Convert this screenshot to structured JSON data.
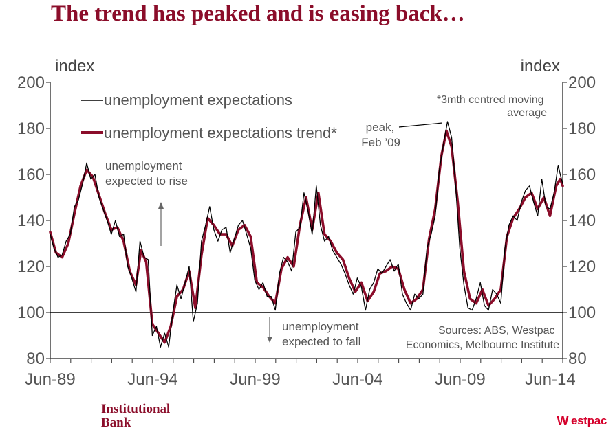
{
  "page": {
    "title": "The trend has peaked and is easing back…",
    "brand_left": [
      "Institutional",
      "Bank"
    ],
    "brand_right": "estpac",
    "brand_right_logo": "W",
    "colors": {
      "title": "#8b0d2a",
      "trend": "#8b0d2a",
      "raw": "#000000",
      "westpac_red": "#d5002b"
    }
  },
  "chart_data": {
    "type": "line",
    "left_axis_label": "index",
    "right_axis_label": "index",
    "ylim": [
      80,
      200
    ],
    "yticks": [
      "80",
      "100",
      "120",
      "140",
      "160",
      "180",
      "200"
    ],
    "xlim": [
      1989.42,
      2014.42
    ],
    "xtick_labels": [
      "Jun-89",
      "Jun-94",
      "Jun-99",
      "Jun-04",
      "Jun-09",
      "Jun-14"
    ],
    "xtick_values": [
      1989.42,
      1994.42,
      1999.42,
      2004.42,
      2009.42,
      2014.42
    ],
    "reference_line": 100,
    "legend": [
      "unemployment expectations",
      "unemployment expectations trend*"
    ],
    "note": [
      "*3mth centred moving",
      "average"
    ],
    "annotations": {
      "peak": [
        "peak,",
        "Feb ’09"
      ],
      "rise": [
        "unemployment",
        "expected to rise"
      ],
      "fall": [
        "unemployment",
        "expected to fall"
      ],
      "sources": [
        "Sources: ABS, Westpac",
        "Economics, Melbourne Institute"
      ]
    },
    "series": [
      {
        "name": "unemployment expectations trend*",
        "points": [
          [
            1989.42,
            135
          ],
          [
            1989.7,
            126
          ],
          [
            1990.0,
            124
          ],
          [
            1990.3,
            130
          ],
          [
            1990.6,
            143
          ],
          [
            1990.9,
            155
          ],
          [
            1991.2,
            162
          ],
          [
            1991.5,
            159
          ],
          [
            1991.8,
            151
          ],
          [
            1992.1,
            143
          ],
          [
            1992.4,
            136
          ],
          [
            1992.7,
            137
          ],
          [
            1993.0,
            131
          ],
          [
            1993.3,
            118
          ],
          [
            1993.6,
            112
          ],
          [
            1993.85,
            127
          ],
          [
            1994.1,
            122
          ],
          [
            1994.4,
            95
          ],
          [
            1994.7,
            91
          ],
          [
            1995.0,
            87
          ],
          [
            1995.3,
            94
          ],
          [
            1995.6,
            107
          ],
          [
            1995.9,
            110
          ],
          [
            1996.2,
            118
          ],
          [
            1996.5,
            102
          ],
          [
            1996.8,
            125
          ],
          [
            1997.1,
            141
          ],
          [
            1997.4,
            138
          ],
          [
            1997.7,
            134
          ],
          [
            1998.0,
            134
          ],
          [
            1998.3,
            129
          ],
          [
            1998.6,
            136
          ],
          [
            1998.9,
            138
          ],
          [
            1999.2,
            133
          ],
          [
            1999.5,
            113
          ],
          [
            1999.8,
            111
          ],
          [
            2000.1,
            107
          ],
          [
            2000.4,
            104
          ],
          [
            2000.7,
            119
          ],
          [
            2001.0,
            124
          ],
          [
            2001.3,
            120
          ],
          [
            2001.6,
            138
          ],
          [
            2001.9,
            150
          ],
          [
            2002.2,
            136
          ],
          [
            2002.5,
            152
          ],
          [
            2002.8,
            134
          ],
          [
            2003.1,
            131
          ],
          [
            2003.4,
            126
          ],
          [
            2003.7,
            123
          ],
          [
            2004.0,
            115
          ],
          [
            2004.3,
            109
          ],
          [
            2004.6,
            113
          ],
          [
            2004.9,
            105
          ],
          [
            2005.2,
            109
          ],
          [
            2005.5,
            117
          ],
          [
            2005.8,
            118
          ],
          [
            2006.1,
            120
          ],
          [
            2006.4,
            119
          ],
          [
            2006.7,
            110
          ],
          [
            2007.0,
            104
          ],
          [
            2007.3,
            106
          ],
          [
            2007.6,
            110
          ],
          [
            2007.9,
            132
          ],
          [
            2008.2,
            145
          ],
          [
            2008.5,
            168
          ],
          [
            2008.75,
            179
          ],
          [
            2009.0,
            172
          ],
          [
            2009.3,
            148
          ],
          [
            2009.6,
            118
          ],
          [
            2009.9,
            106
          ],
          [
            2010.2,
            104
          ],
          [
            2010.5,
            110
          ],
          [
            2010.8,
            103
          ],
          [
            2011.1,
            106
          ],
          [
            2011.4,
            110
          ],
          [
            2011.7,
            133
          ],
          [
            2012.0,
            141
          ],
          [
            2012.3,
            145
          ],
          [
            2012.6,
            150
          ],
          [
            2012.9,
            152
          ],
          [
            2013.2,
            145
          ],
          [
            2013.5,
            150
          ],
          [
            2013.8,
            142
          ],
          [
            2014.1,
            155
          ],
          [
            2014.3,
            158
          ],
          [
            2014.42,
            155
          ]
        ]
      },
      {
        "name": "unemployment expectations",
        "points": [
          [
            1989.42,
            134
          ],
          [
            1989.6,
            128
          ],
          [
            1989.8,
            124
          ],
          [
            1990.0,
            125
          ],
          [
            1990.2,
            131
          ],
          [
            1990.4,
            134
          ],
          [
            1990.6,
            146
          ],
          [
            1990.8,
            149
          ],
          [
            1991.0,
            156
          ],
          [
            1991.2,
            165
          ],
          [
            1991.4,
            158
          ],
          [
            1991.6,
            160
          ],
          [
            1991.8,
            150
          ],
          [
            1992.0,
            145
          ],
          [
            1992.2,
            140
          ],
          [
            1992.4,
            134
          ],
          [
            1992.6,
            140
          ],
          [
            1992.8,
            133
          ],
          [
            1993.0,
            134
          ],
          [
            1993.2,
            120
          ],
          [
            1993.4,
            115
          ],
          [
            1993.6,
            109
          ],
          [
            1993.8,
            131
          ],
          [
            1994.0,
            124
          ],
          [
            1994.2,
            123
          ],
          [
            1994.4,
            90
          ],
          [
            1994.6,
            94
          ],
          [
            1994.8,
            85
          ],
          [
            1995.0,
            91
          ],
          [
            1995.2,
            85
          ],
          [
            1995.4,
            100
          ],
          [
            1995.6,
            112
          ],
          [
            1995.8,
            106
          ],
          [
            1996.0,
            113
          ],
          [
            1996.2,
            120
          ],
          [
            1996.4,
            96
          ],
          [
            1996.6,
            104
          ],
          [
            1996.8,
            131
          ],
          [
            1997.0,
            138
          ],
          [
            1997.2,
            146
          ],
          [
            1997.4,
            136
          ],
          [
            1997.6,
            131
          ],
          [
            1997.8,
            136
          ],
          [
            1998.0,
            137
          ],
          [
            1998.2,
            126
          ],
          [
            1998.4,
            132
          ],
          [
            1998.6,
            138
          ],
          [
            1998.8,
            140
          ],
          [
            1999.0,
            134
          ],
          [
            1999.2,
            128
          ],
          [
            1999.4,
            114
          ],
          [
            1999.6,
            110
          ],
          [
            1999.8,
            113
          ],
          [
            2000.0,
            107
          ],
          [
            2000.2,
            107
          ],
          [
            2000.4,
            101
          ],
          [
            2000.6,
            117
          ],
          [
            2000.8,
            124
          ],
          [
            2001.0,
            122
          ],
          [
            2001.2,
            118
          ],
          [
            2001.4,
            135
          ],
          [
            2001.6,
            137
          ],
          [
            2001.8,
            152
          ],
          [
            2002.0,
            144
          ],
          [
            2002.2,
            134
          ],
          [
            2002.4,
            155
          ],
          [
            2002.6,
            138
          ],
          [
            2002.8,
            131
          ],
          [
            2003.0,
            133
          ],
          [
            2003.2,
            127
          ],
          [
            2003.4,
            124
          ],
          [
            2003.6,
            121
          ],
          [
            2003.8,
            117
          ],
          [
            2004.0,
            112
          ],
          [
            2004.2,
            108
          ],
          [
            2004.4,
            115
          ],
          [
            2004.6,
            111
          ],
          [
            2004.8,
            101
          ],
          [
            2005.0,
            110
          ],
          [
            2005.2,
            113
          ],
          [
            2005.4,
            119
          ],
          [
            2005.6,
            117
          ],
          [
            2005.8,
            120
          ],
          [
            2006.0,
            123
          ],
          [
            2006.2,
            118
          ],
          [
            2006.4,
            121
          ],
          [
            2006.6,
            108
          ],
          [
            2006.8,
            104
          ],
          [
            2007.0,
            101
          ],
          [
            2007.2,
            108
          ],
          [
            2007.4,
            106
          ],
          [
            2007.6,
            108
          ],
          [
            2007.8,
            128
          ],
          [
            2008.0,
            134
          ],
          [
            2008.2,
            142
          ],
          [
            2008.4,
            162
          ],
          [
            2008.6,
            173
          ],
          [
            2008.8,
            183
          ],
          [
            2009.0,
            176
          ],
          [
            2009.2,
            155
          ],
          [
            2009.4,
            128
          ],
          [
            2009.6,
            112
          ],
          [
            2009.8,
            102
          ],
          [
            2010.0,
            101
          ],
          [
            2010.2,
            106
          ],
          [
            2010.4,
            113
          ],
          [
            2010.6,
            103
          ],
          [
            2010.8,
            101
          ],
          [
            2011.0,
            110
          ],
          [
            2011.2,
            108
          ],
          [
            2011.4,
            104
          ],
          [
            2011.6,
            128
          ],
          [
            2011.8,
            138
          ],
          [
            2012.0,
            142
          ],
          [
            2012.2,
            140
          ],
          [
            2012.4,
            148
          ],
          [
            2012.6,
            153
          ],
          [
            2012.8,
            155
          ],
          [
            2013.0,
            148
          ],
          [
            2013.2,
            142
          ],
          [
            2013.4,
            158
          ],
          [
            2013.6,
            146
          ],
          [
            2013.8,
            145
          ],
          [
            2014.0,
            152
          ],
          [
            2014.2,
            164
          ],
          [
            2014.3,
            160
          ],
          [
            2014.42,
            156
          ]
        ]
      }
    ]
  }
}
